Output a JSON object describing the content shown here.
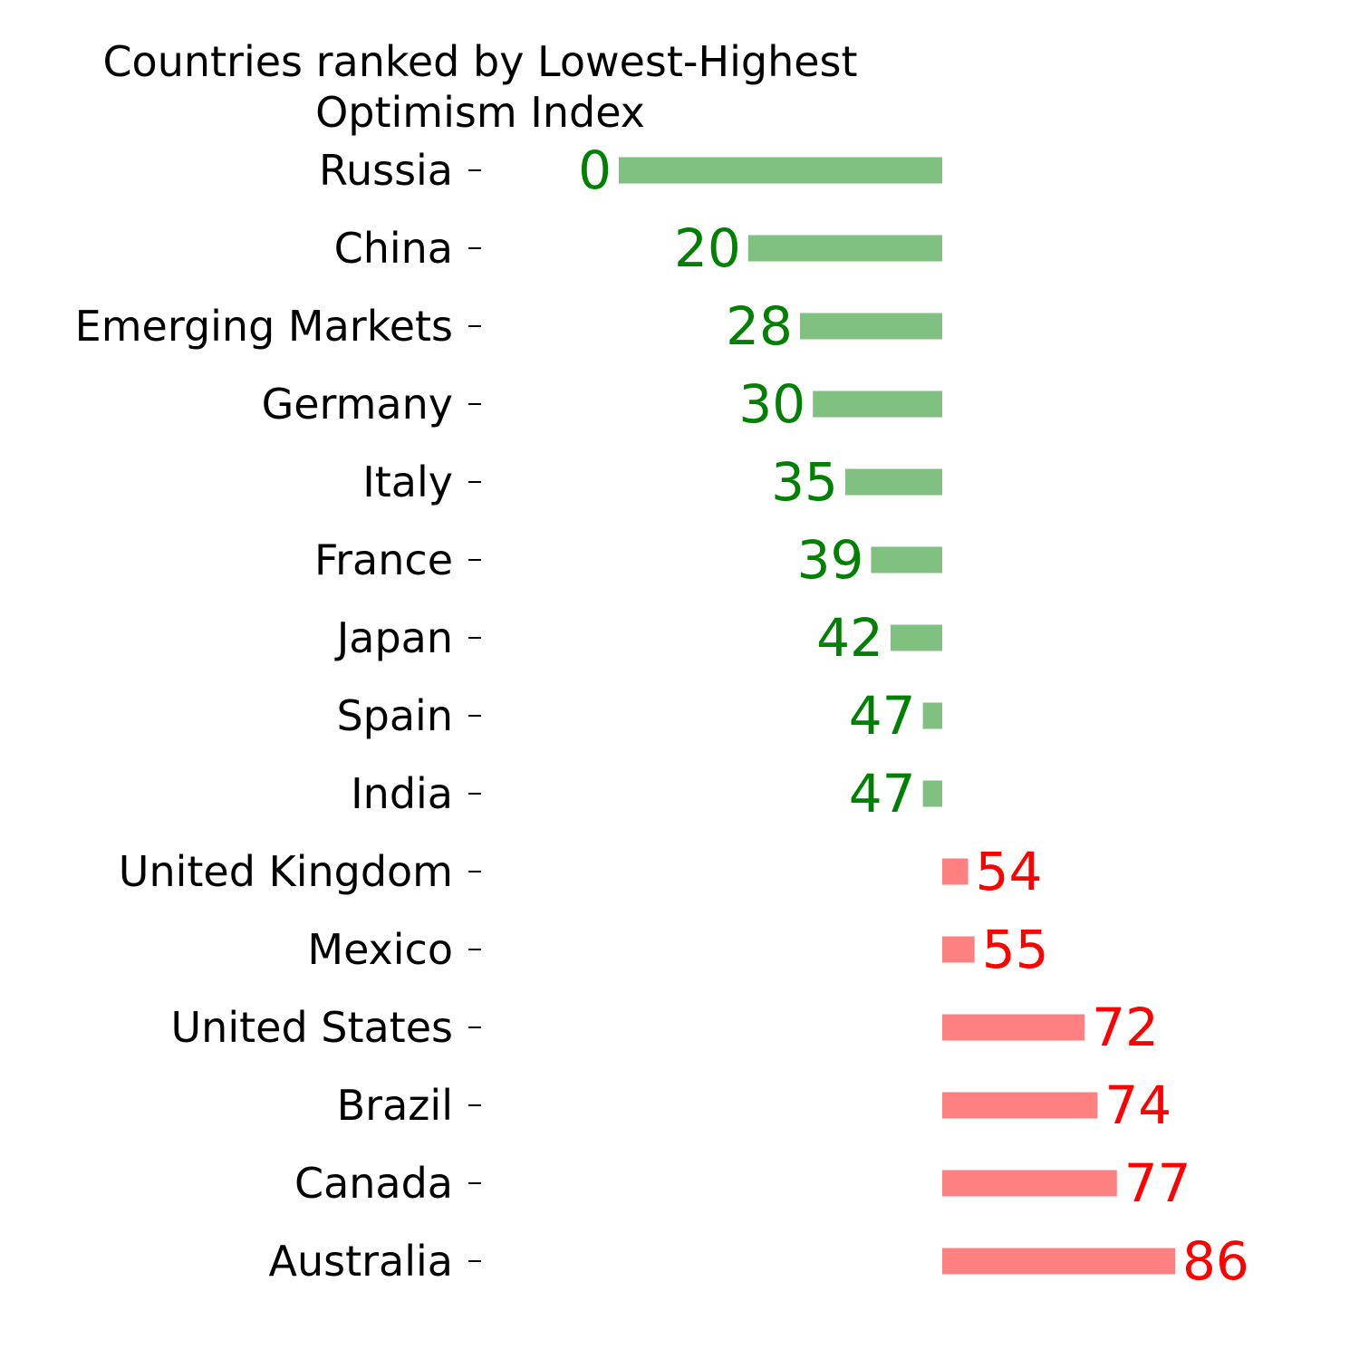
{
  "chart_data": {
    "type": "bar",
    "orientation": "horizontal",
    "title": "Countries ranked by Lowest-Highest\nOptimism Index",
    "categories": [
      "Russia",
      "China",
      "Emerging Markets",
      "Germany",
      "Italy",
      "France",
      "Japan",
      "Spain",
      "India",
      "United Kingdom",
      "Mexico",
      "United States",
      "Brazil",
      "Canada",
      "Australia"
    ],
    "values": [
      0,
      20,
      28,
      30,
      35,
      39,
      42,
      47,
      47,
      54,
      55,
      72,
      74,
      77,
      86
    ],
    "baseline": 50,
    "xlim": [
      0,
      100
    ],
    "grid": false,
    "legend": "none",
    "colors": {
      "below_baseline_bar": "#80c080",
      "below_baseline_label": "#008000",
      "above_baseline_bar": "#ff8080",
      "above_baseline_label": "#ff0000",
      "text": "#000000"
    }
  }
}
